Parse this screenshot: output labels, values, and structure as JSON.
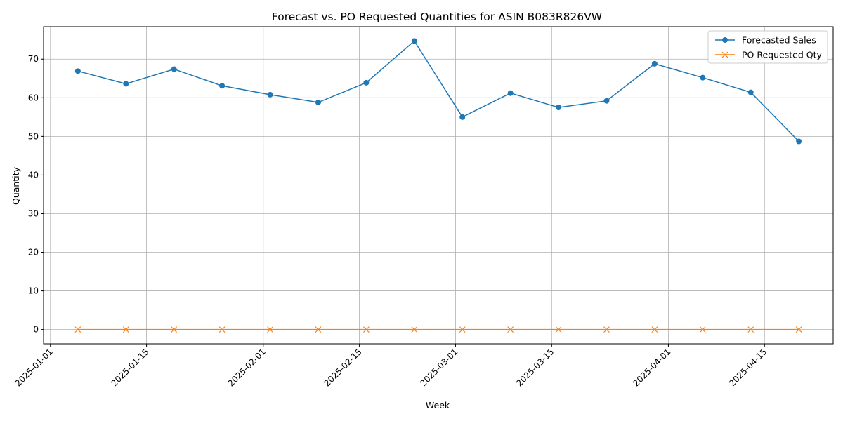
{
  "chart_data": {
    "type": "line",
    "title": "Forecast vs. PO Requested Quantities for ASIN B083R826VW",
    "xlabel": "Week",
    "ylabel": "Quantity",
    "x": [
      "2025-01-05",
      "2025-01-12",
      "2025-01-19",
      "2025-01-26",
      "2025-02-02",
      "2025-02-09",
      "2025-02-16",
      "2025-02-23",
      "2025-03-02",
      "2025-03-09",
      "2025-03-16",
      "2025-03-23",
      "2025-03-30",
      "2025-04-06",
      "2025-04-13",
      "2025-04-20"
    ],
    "xlim": [
      "2024-12-31",
      "2025-04-25"
    ],
    "ylim": [
      -3.7,
      78.4
    ],
    "xticks": [
      "2025-01-01",
      "2025-01-15",
      "2025-02-01",
      "2025-02-15",
      "2025-03-01",
      "2025-03-15",
      "2025-04-01",
      "2025-04-15"
    ],
    "yticks": [
      0,
      10,
      20,
      30,
      40,
      50,
      60,
      70
    ],
    "grid": true,
    "legend_position": "top-right",
    "series": [
      {
        "name": "Forecasted Sales",
        "color": "#1f77b4",
        "marker": "circle",
        "values": [
          66.9,
          63.6,
          67.4,
          63.1,
          60.8,
          58.8,
          63.9,
          74.7,
          55.0,
          61.2,
          57.5,
          59.2,
          68.8,
          65.2,
          61.4,
          48.7
        ]
      },
      {
        "name": "PO Requested Qty",
        "color": "#ff7f0e",
        "marker": "x",
        "values": [
          0,
          0,
          0,
          0,
          0,
          0,
          0,
          0,
          0,
          0,
          0,
          0,
          0,
          0,
          0,
          0
        ]
      }
    ]
  }
}
